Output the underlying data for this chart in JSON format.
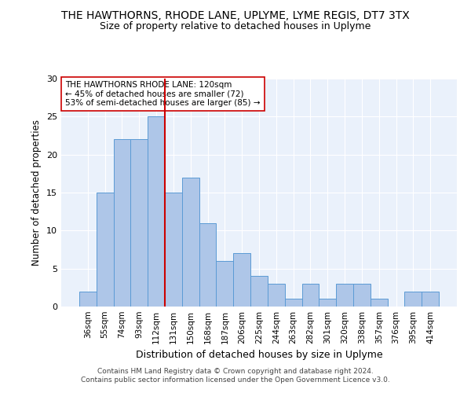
{
  "title": "THE HAWTHORNS, RHODE LANE, UPLYME, LYME REGIS, DT7 3TX",
  "subtitle": "Size of property relative to detached houses in Uplyme",
  "xlabel": "Distribution of detached houses by size in Uplyme",
  "ylabel": "Number of detached properties",
  "categories": [
    "36sqm",
    "55sqm",
    "74sqm",
    "93sqm",
    "112sqm",
    "131sqm",
    "150sqm",
    "168sqm",
    "187sqm",
    "206sqm",
    "225sqm",
    "244sqm",
    "263sqm",
    "282sqm",
    "301sqm",
    "320sqm",
    "338sqm",
    "357sqm",
    "376sqm",
    "395sqm",
    "414sqm"
  ],
  "values": [
    2,
    15,
    22,
    22,
    25,
    15,
    17,
    11,
    6,
    7,
    4,
    3,
    1,
    3,
    1,
    3,
    3,
    1,
    0,
    2,
    2
  ],
  "bar_color": "#AEC6E8",
  "bar_edge_color": "#5B9BD5",
  "reference_line_x": 4.5,
  "reference_line_color": "#CC0000",
  "annotation_text": "THE HAWTHORNS RHODE LANE: 120sqm\n← 45% of detached houses are smaller (72)\n53% of semi-detached houses are larger (85) →",
  "annotation_box_color": "#ffffff",
  "annotation_box_edge": "#CC0000",
  "ylim": [
    0,
    30
  ],
  "yticks": [
    0,
    5,
    10,
    15,
    20,
    25,
    30
  ],
  "footer_line1": "Contains HM Land Registry data © Crown copyright and database right 2024.",
  "footer_line2": "Contains public sector information licensed under the Open Government Licence v3.0.",
  "bg_color": "#EAF1FB",
  "title_fontsize": 10,
  "subtitle_fontsize": 9,
  "footer_fontsize": 6.5
}
